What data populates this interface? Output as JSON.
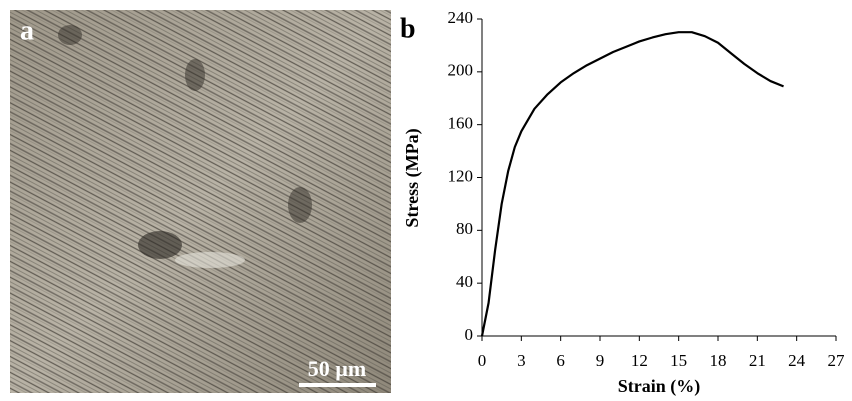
{
  "image_panel": {
    "label": "a",
    "scale_bar": "50 µm"
  },
  "chart_data": {
    "type": "line",
    "panel_label": "b",
    "x_label": "Strain (%)",
    "y_label": "Stress (MPa)",
    "x": [
      0,
      0.5,
      1,
      1.5,
      2,
      2.5,
      3,
      4,
      5,
      6,
      7,
      8,
      9,
      10,
      11,
      12,
      13,
      14,
      15,
      16,
      17,
      18,
      19,
      20,
      21,
      22,
      23
    ],
    "values": [
      0,
      25,
      65,
      100,
      125,
      143,
      155,
      172,
      183,
      192,
      199,
      205,
      210,
      215,
      219,
      223,
      226,
      228.5,
      230,
      230,
      227,
      222,
      214,
      206,
      199,
      193,
      189
    ],
    "color": "#000000",
    "xlim": [
      0,
      27
    ],
    "xticks": [
      0,
      3,
      6,
      9,
      12,
      15,
      18,
      21,
      24,
      27
    ],
    "ylim": [
      0,
      240
    ],
    "yticks": [
      0,
      40,
      80,
      120,
      160,
      200,
      240
    ]
  }
}
